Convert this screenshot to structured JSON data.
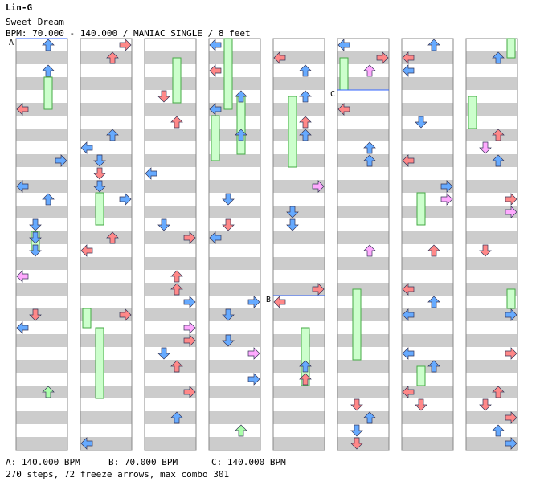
{
  "song": {
    "artist": "Lin-G",
    "title": "Sweet Dream",
    "meta": "BPM: 70.000 - 140.000 / MANIAC SINGLE / 8 feet"
  },
  "markers": [
    "A",
    "B",
    "C"
  ],
  "bpm_legend": [
    "A: 140.000 BPM",
    "B: 70.000 BPM",
    "C: 140.000 BPM"
  ],
  "summary": "270 steps, 72 freeze arrows, max combo 301",
  "colors": {
    "stripe": "#cccccc",
    "lane_bg": "#ffffff",
    "border": "#888888",
    "blue": "#66aaff",
    "red": "#ff8888",
    "pink": "#ffaaff",
    "green": "#aaffaa",
    "freeze": "#ccffcc",
    "freeze_border": "#44aa44",
    "bpm_line": "#3366ff"
  },
  "icons": {
    "left": "left-arrow-icon",
    "down": "down-arrow-icon",
    "up": "up-arrow-icon",
    "right": "right-arrow-icon"
  },
  "stats": {
    "steps": 270,
    "freeze_arrows": 72,
    "max_combo": 301,
    "columns": 8
  }
}
